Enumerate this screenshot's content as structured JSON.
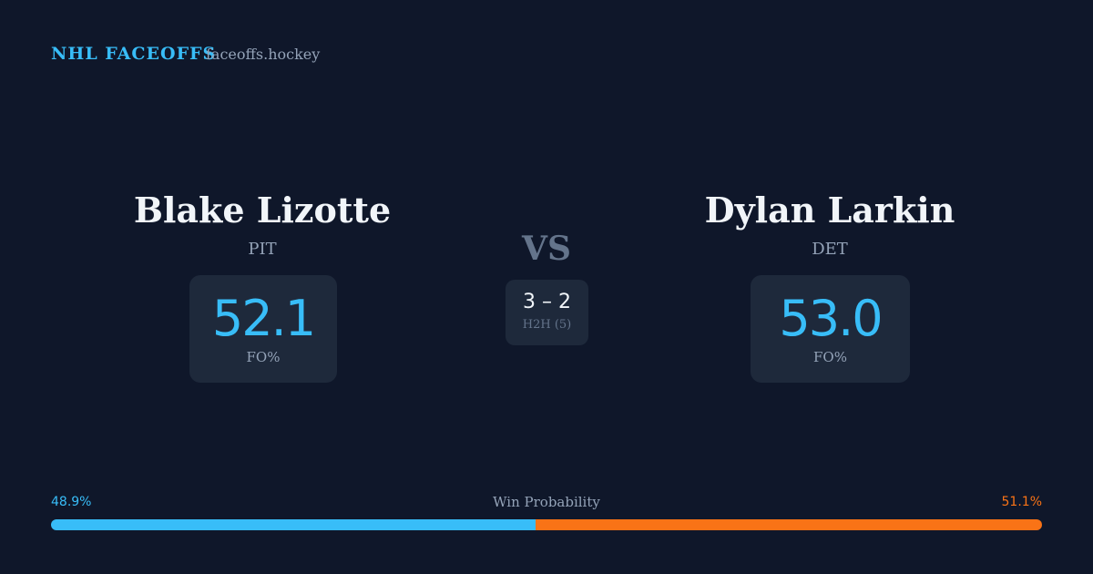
{
  "header": {
    "brand": "NHL FACEOFFS",
    "site": "faceoffs.hockey"
  },
  "players": [
    {
      "name": "Blake Lizotte",
      "team": "PIT",
      "stat": "52.1",
      "stat_label": "FO%"
    },
    {
      "name": "Dylan Larkin",
      "team": "DET",
      "stat": "53.0",
      "stat_label": "FO%"
    }
  ],
  "vs": "VS",
  "h2h": {
    "score": "3 – 2",
    "label": "H2H (5)"
  },
  "win_probability": {
    "label": "Win Probability",
    "values": [
      48.9,
      51.1
    ],
    "value_labels": [
      "48.9%",
      "51.1%"
    ],
    "colors": [
      "#38bdf8",
      "#f97316"
    ]
  }
}
